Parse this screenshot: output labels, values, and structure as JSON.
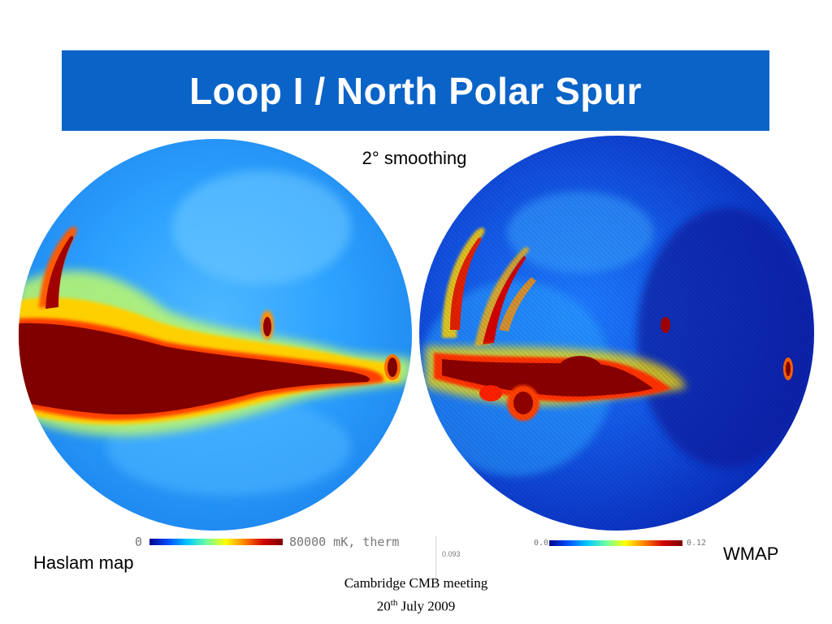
{
  "slide": {
    "title": "Loop I / North Polar Spur",
    "subtitle": "2° smoothing",
    "left_map": {
      "caption": "Haslam map",
      "colorbar_min": "0",
      "colorbar_max": "80000 mK, therm"
    },
    "right_map": {
      "caption": "WMAP",
      "colorbar_min": "0.0",
      "colorbar_max": "0.12"
    },
    "stray_value": "0.093",
    "footer": {
      "line1": "Cambridge CMB meeting",
      "line2_day": "20",
      "line2_suffix": "th",
      "line2_rest": " July 2009"
    }
  },
  "colors": {
    "title_bar": "#0a63c7",
    "title_text": "#ffffff"
  }
}
